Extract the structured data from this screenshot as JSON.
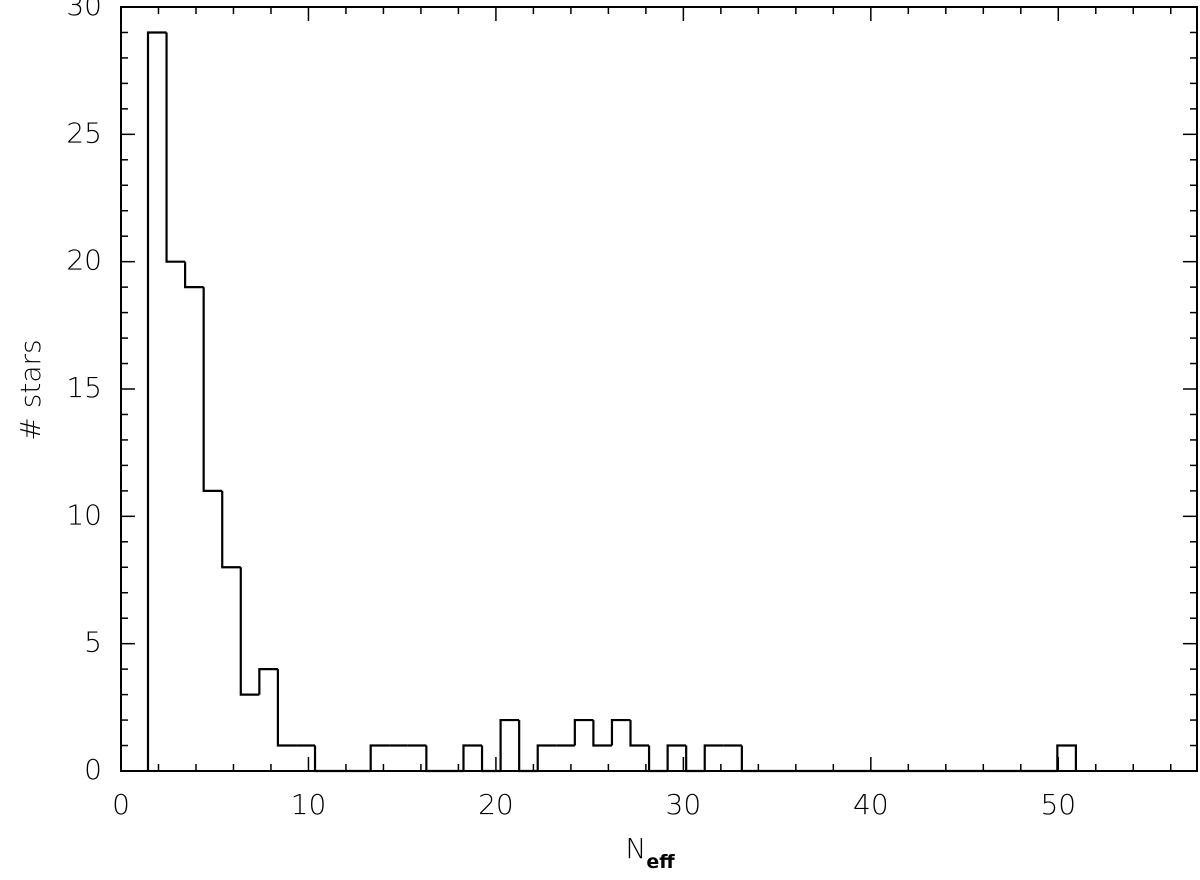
{
  "chart_data": {
    "type": "histogram",
    "xlabel": "N",
    "xlabel_subscript": "eff",
    "ylabel": "# stars",
    "bins": [
      1.44,
      2.43,
      3.42,
      4.41,
      5.4,
      6.39,
      7.38,
      8.37,
      9.36,
      10.35,
      11.34,
      12.33,
      13.32,
      14.31,
      15.3,
      16.29,
      17.28,
      18.27,
      19.26,
      20.25,
      21.24,
      22.23,
      23.22,
      24.21,
      25.2,
      26.19,
      27.18,
      28.17,
      29.16,
      30.15,
      31.14,
      32.13,
      33.12,
      34.11,
      35.1,
      36.09,
      37.08,
      38.07,
      39.06,
      40.05,
      41.04,
      42.03,
      43.02,
      44.01,
      45.0,
      45.99,
      46.98,
      47.97,
      48.96,
      49.95,
      50.94
    ],
    "values": [
      29,
      20,
      19,
      11,
      8,
      3,
      4,
      1,
      1,
      0,
      0,
      0,
      1,
      1,
      1,
      0,
      0,
      1,
      0,
      2,
      0,
      1,
      1,
      2,
      1,
      2,
      1,
      0,
      1,
      0,
      1,
      1,
      0,
      0,
      0,
      0,
      0,
      0,
      0,
      0,
      0,
      0,
      0,
      0,
      0,
      0,
      0,
      0,
      0,
      1
    ],
    "color": "#000000",
    "xlim": [
      0,
      57.4
    ],
    "xticks": [
      0,
      10,
      20,
      30,
      40,
      50
    ],
    "ylim": [
      0,
      30
    ],
    "yticks": [
      0,
      5,
      10,
      15,
      20,
      25,
      30
    ]
  }
}
